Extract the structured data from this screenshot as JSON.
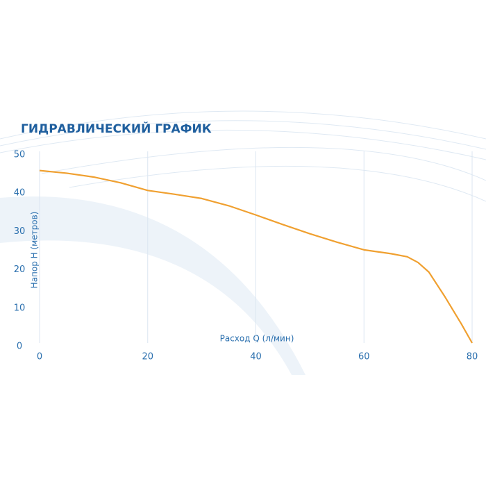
{
  "chart_data": {
    "type": "line",
    "title": "ГИДРАВЛИЧЕСКИЙ ГРАФИК",
    "x_label": "Расход Q (л/мин)",
    "y_label": "Напор Н (метров)",
    "x": [
      0,
      5,
      10,
      15,
      20,
      25,
      30,
      35,
      40,
      45,
      50,
      55,
      60,
      65,
      68,
      70,
      72,
      75,
      78,
      80
    ],
    "series": [
      {
        "name": "H",
        "color": "#f0a030",
        "values": [
          45,
          44.3,
          43.3,
          41.8,
          39.8,
          38.8,
          37.7,
          35.8,
          33.4,
          30.9,
          28.5,
          26.3,
          24.3,
          23.3,
          22.5,
          21,
          18.5,
          12,
          5,
          0
        ]
      }
    ],
    "xlim": [
      0,
      80
    ],
    "xticks": [
      0,
      20,
      40,
      60,
      80
    ],
    "ylim": [
      0,
      50
    ],
    "yticks": [
      0,
      10,
      20,
      30,
      40,
      50
    ],
    "grid": true
  }
}
